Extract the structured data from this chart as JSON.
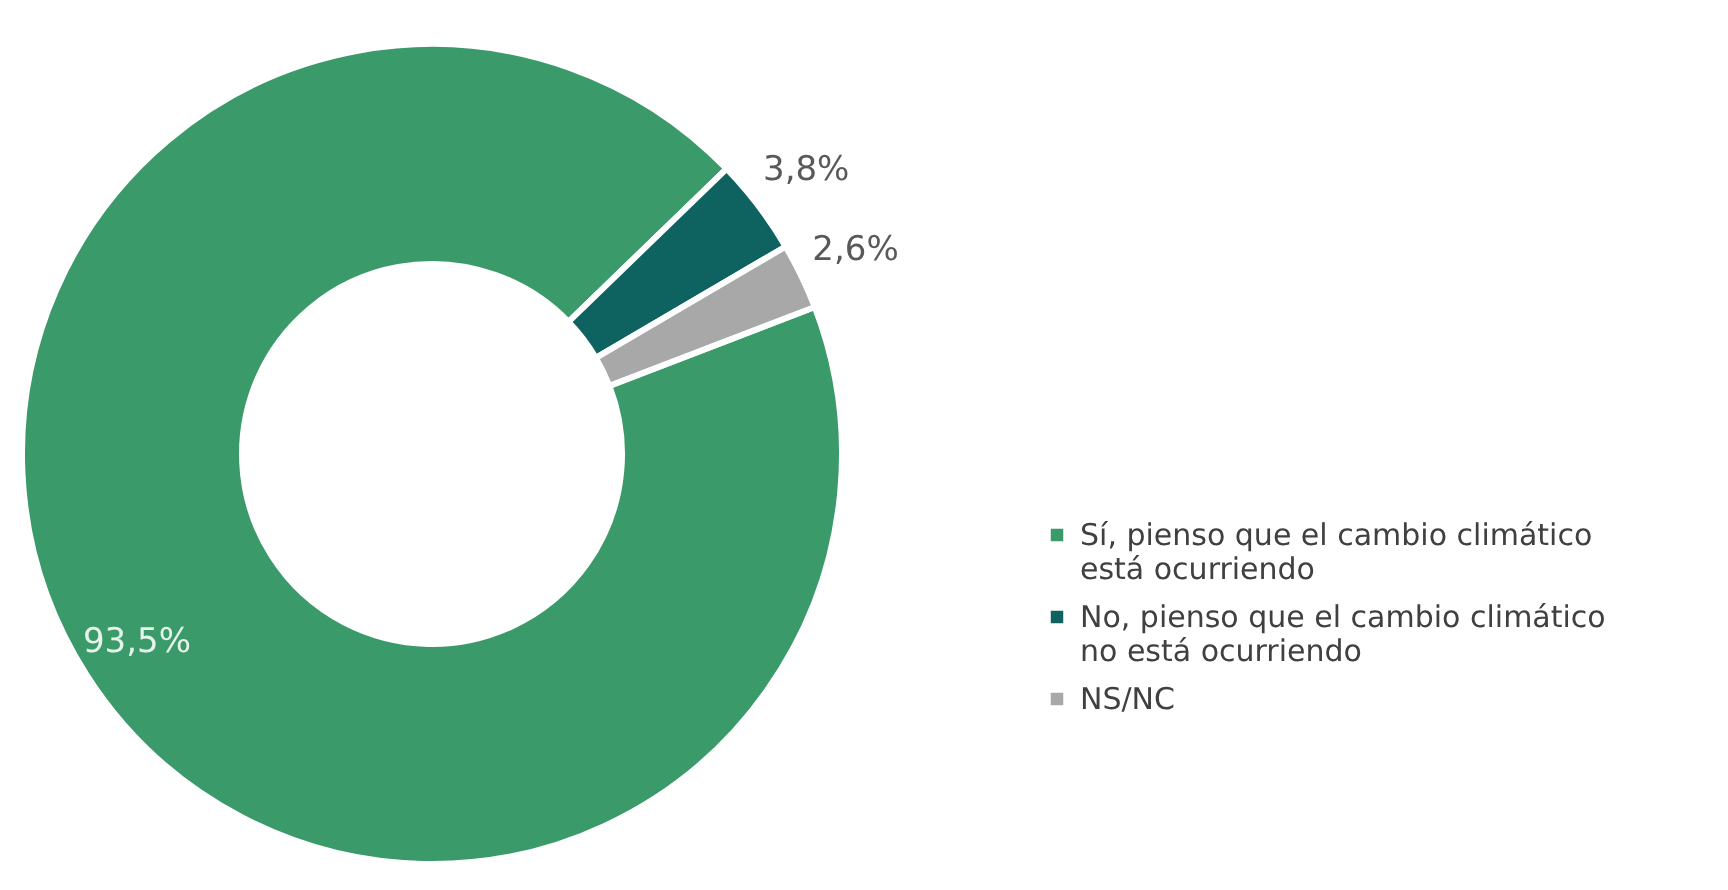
{
  "chart_data": {
    "type": "donut",
    "categories": [
      "Sí, pienso que el cambio climático está ocurriendo",
      "No, pienso que el cambio climático no está ocurriendo",
      "NS/NC"
    ],
    "values": [
      93.5,
      3.8,
      2.6
    ],
    "colors": [
      "#3a9a6a",
      "#0e6360",
      "#a8a8a8"
    ],
    "value_labels": [
      "93,5%",
      "3,8%",
      "2,6%"
    ],
    "legend": "right"
  }
}
